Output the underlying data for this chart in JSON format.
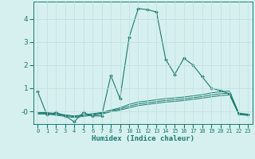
{
  "xlabel": "Humidex (Indice chaleur)",
  "x": [
    0,
    1,
    2,
    3,
    4,
    5,
    6,
    7,
    8,
    9,
    10,
    11,
    12,
    13,
    14,
    15,
    16,
    17,
    18,
    19,
    20,
    21,
    22,
    23
  ],
  "y_main": [
    0.85,
    -0.15,
    -0.05,
    -0.2,
    -0.45,
    -0.05,
    -0.2,
    -0.2,
    1.55,
    0.55,
    3.2,
    4.45,
    4.4,
    4.3,
    2.25,
    1.6,
    2.3,
    2.0,
    1.5,
    1.0,
    0.9,
    0.75,
    -0.1,
    -0.15
  ],
  "y_upper": [
    -0.05,
    -0.05,
    -0.1,
    -0.15,
    -0.2,
    -0.15,
    -0.1,
    -0.05,
    0.05,
    0.15,
    0.3,
    0.4,
    0.45,
    0.5,
    0.55,
    0.58,
    0.62,
    0.67,
    0.72,
    0.8,
    0.85,
    0.88,
    -0.08,
    -0.12
  ],
  "y_middle": [
    -0.08,
    -0.08,
    -0.13,
    -0.18,
    -0.23,
    -0.18,
    -0.13,
    -0.08,
    0.02,
    0.1,
    0.22,
    0.32,
    0.37,
    0.42,
    0.47,
    0.5,
    0.54,
    0.59,
    0.64,
    0.71,
    0.76,
    0.79,
    -0.11,
    -0.15
  ],
  "y_lower": [
    -0.12,
    -0.12,
    -0.17,
    -0.22,
    -0.27,
    -0.22,
    -0.17,
    -0.12,
    -0.02,
    0.05,
    0.15,
    0.25,
    0.3,
    0.35,
    0.4,
    0.43,
    0.47,
    0.52,
    0.57,
    0.63,
    0.68,
    0.71,
    -0.14,
    -0.18
  ],
  "line_color": "#1a7a6e",
  "bg_color": "#d6f0f0",
  "grid_color": "#c0dede",
  "ylim": [
    -0.55,
    4.75
  ],
  "yticks": [
    0,
    1,
    2,
    3,
    4
  ],
  "xlim": [
    -0.5,
    23.5
  ],
  "figsize": [
    3.2,
    2.0
  ],
  "dpi": 100
}
